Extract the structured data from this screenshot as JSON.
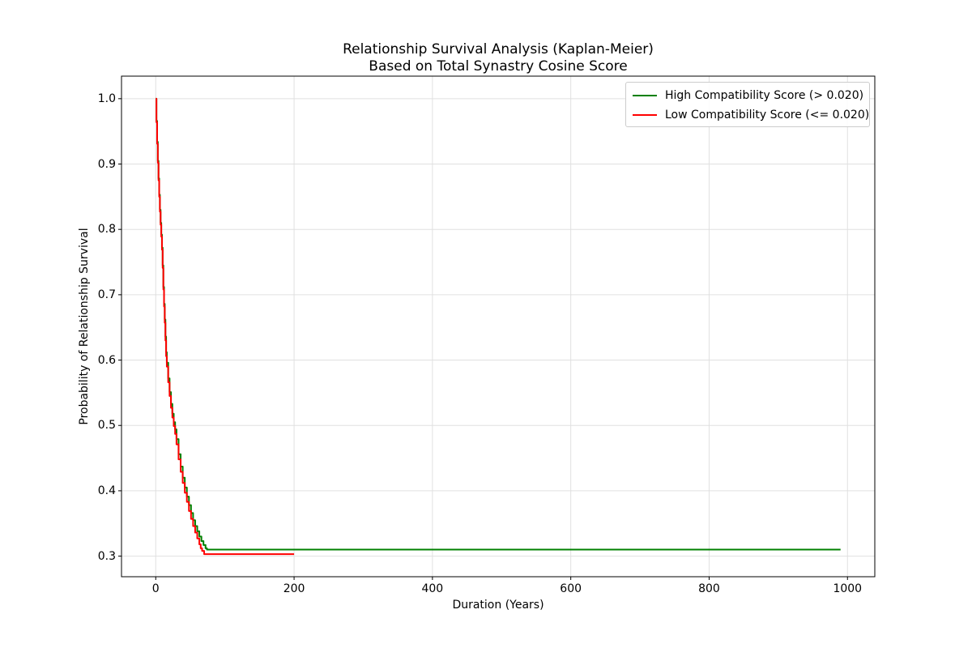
{
  "figure": {
    "title_line1": "Relationship Survival Analysis (Kaplan-Meier)",
    "title_line2": "Based on Total Synastry Cosine Score"
  },
  "chart_data": {
    "type": "line",
    "subtype": "kaplan-meier-step",
    "title_lines": [
      "Relationship Survival Analysis (Kaplan-Meier)",
      "Based on Total Synastry Cosine Score"
    ],
    "xlabel": "Duration (Years)",
    "ylabel": "Probability of Relationship Survival",
    "xlim": [
      -49.5,
      1039.5
    ],
    "ylim": [
      0.2685,
      1.0345
    ],
    "xticks": [
      0,
      200,
      400,
      600,
      800,
      1000
    ],
    "yticks": [
      0.3,
      0.4,
      0.5,
      0.6,
      0.7,
      0.8,
      0.9,
      1.0
    ],
    "grid": true,
    "grid_color": "#e0e0e0",
    "legend_position": "upper right",
    "series": [
      {
        "name": "High Compatibility Score (> 0.020)",
        "color": "#008000",
        "plateau": 0.31,
        "end_x": 990,
        "points": [
          [
            0,
            1.0
          ],
          [
            1,
            0.966
          ],
          [
            2,
            0.934
          ],
          [
            3,
            0.905
          ],
          [
            4,
            0.878
          ],
          [
            5,
            0.853
          ],
          [
            6,
            0.83
          ],
          [
            7,
            0.81
          ],
          [
            8,
            0.792
          ],
          [
            9,
            0.772
          ],
          [
            10,
            0.745
          ],
          [
            11,
            0.712
          ],
          [
            12,
            0.686
          ],
          [
            13,
            0.662
          ],
          [
            14,
            0.636
          ],
          [
            15,
            0.612
          ],
          [
            16,
            0.596
          ],
          [
            18,
            0.572
          ],
          [
            20,
            0.551
          ],
          [
            22,
            0.533
          ],
          [
            24,
            0.518
          ],
          [
            26,
            0.505
          ],
          [
            28,
            0.494
          ],
          [
            30,
            0.479
          ],
          [
            33,
            0.456
          ],
          [
            36,
            0.437
          ],
          [
            39,
            0.42
          ],
          [
            42,
            0.405
          ],
          [
            45,
            0.391
          ],
          [
            48,
            0.378
          ],
          [
            51,
            0.366
          ],
          [
            54,
            0.355
          ],
          [
            57,
            0.346
          ],
          [
            60,
            0.338
          ],
          [
            63,
            0.33
          ],
          [
            66,
            0.323
          ],
          [
            69,
            0.317
          ],
          [
            72,
            0.312
          ],
          [
            74,
            0.31
          ],
          [
            990,
            0.31
          ]
        ]
      },
      {
        "name": "Low Compatibility Score (<= 0.020)",
        "color": "#ff0000",
        "plateau": 0.303,
        "end_x": 200,
        "points": [
          [
            0,
            1.0
          ],
          [
            1,
            0.964
          ],
          [
            2,
            0.931
          ],
          [
            3,
            0.902
          ],
          [
            4,
            0.875
          ],
          [
            5,
            0.85
          ],
          [
            6,
            0.827
          ],
          [
            7,
            0.807
          ],
          [
            8,
            0.789
          ],
          [
            9,
            0.769
          ],
          [
            10,
            0.741
          ],
          [
            11,
            0.708
          ],
          [
            12,
            0.682
          ],
          [
            13,
            0.657
          ],
          [
            14,
            0.63
          ],
          [
            15,
            0.606
          ],
          [
            16,
            0.59
          ],
          [
            18,
            0.566
          ],
          [
            20,
            0.545
          ],
          [
            22,
            0.527
          ],
          [
            24,
            0.512
          ],
          [
            26,
            0.499
          ],
          [
            28,
            0.487
          ],
          [
            30,
            0.471
          ],
          [
            33,
            0.448
          ],
          [
            36,
            0.429
          ],
          [
            39,
            0.412
          ],
          [
            42,
            0.397
          ],
          [
            45,
            0.383
          ],
          [
            48,
            0.369
          ],
          [
            51,
            0.357
          ],
          [
            54,
            0.346
          ],
          [
            57,
            0.336
          ],
          [
            60,
            0.327
          ],
          [
            63,
            0.318
          ],
          [
            65,
            0.312
          ],
          [
            67,
            0.308
          ],
          [
            70,
            0.303
          ],
          [
            200,
            0.303
          ]
        ]
      }
    ]
  }
}
